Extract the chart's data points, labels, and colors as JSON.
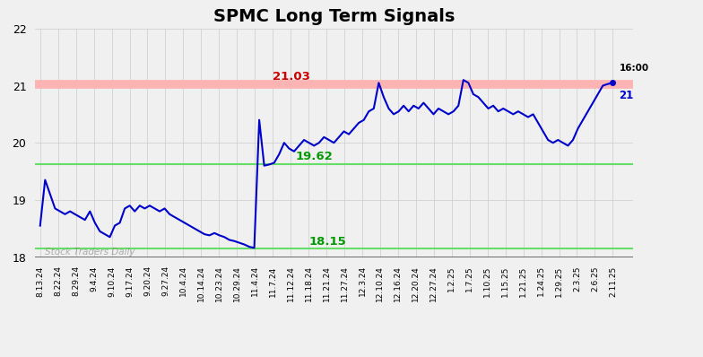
{
  "title": "SPMC Long Term Signals",
  "title_fontsize": 14,
  "title_fontweight": "bold",
  "ylim": [
    18,
    22
  ],
  "yticks": [
    18,
    19,
    20,
    21,
    22
  ],
  "background_color": "#f0f0f0",
  "line_color": "#0000cc",
  "line_width": 1.5,
  "red_hline": 21.03,
  "green_hline_upper": 19.62,
  "green_hline_lower": 18.15,
  "red_hline_color": "#ffb3b3",
  "green_hline_color": "#66dd66",
  "red_label_color": "#cc0000",
  "green_label_color": "#009900",
  "red_label": "21.03",
  "green_upper_label": "19.62",
  "green_lower_label": "18.15",
  "watermark": "Stock Traders Daily",
  "end_label_time": "16:00",
  "end_label_price": "21",
  "xtick_labels": [
    "8.13.24",
    "8.22.24",
    "8.29.24",
    "9.4.24",
    "9.10.24",
    "9.17.24",
    "9.20.24",
    "9.27.24",
    "10.4.24",
    "10.14.24",
    "10.23.24",
    "10.29.24",
    "11.4.24",
    "11.7.24",
    "11.12.24",
    "11.18.24",
    "11.21.24",
    "11.27.24",
    "12.3.24",
    "12.10.24",
    "12.16.24",
    "12.20.24",
    "12.27.24",
    "1.2.25",
    "1.7.25",
    "1.10.25",
    "1.15.25",
    "1.21.25",
    "1.24.25",
    "1.29.25",
    "2.3.25",
    "2.6.25",
    "2.11.25"
  ],
  "prices": [
    18.55,
    19.35,
    19.1,
    18.85,
    18.8,
    18.75,
    18.8,
    18.75,
    18.7,
    18.65,
    18.8,
    18.6,
    18.45,
    18.4,
    18.35,
    18.55,
    18.6,
    18.85,
    18.9,
    18.8,
    18.9,
    18.85,
    18.9,
    18.85,
    18.8,
    18.85,
    18.75,
    18.7,
    18.65,
    18.6,
    18.55,
    18.5,
    18.45,
    18.4,
    18.38,
    18.42,
    18.38,
    18.35,
    18.3,
    18.28,
    18.25,
    18.22,
    18.18,
    18.16,
    20.4,
    19.6,
    19.62,
    19.65,
    19.8,
    20.0,
    19.9,
    19.85,
    19.95,
    20.05,
    20.0,
    19.95,
    20.0,
    20.1,
    20.05,
    20.0,
    20.1,
    20.2,
    20.15,
    20.25,
    20.35,
    20.4,
    20.55,
    20.6,
    21.05,
    20.8,
    20.6,
    20.5,
    20.55,
    20.65,
    20.55,
    20.65,
    20.6,
    20.7,
    20.6,
    20.5,
    20.6,
    20.55,
    20.5,
    20.55,
    20.65,
    21.1,
    21.05,
    20.85,
    20.8,
    20.7,
    20.6,
    20.65,
    20.55,
    20.6,
    20.55,
    20.5,
    20.55,
    20.5,
    20.45,
    20.5,
    20.35,
    20.2,
    20.05,
    20.0,
    20.05,
    20.0,
    19.95,
    20.05,
    20.25,
    20.4,
    20.55,
    20.7,
    20.85,
    21.0,
    21.03,
    21.05
  ]
}
